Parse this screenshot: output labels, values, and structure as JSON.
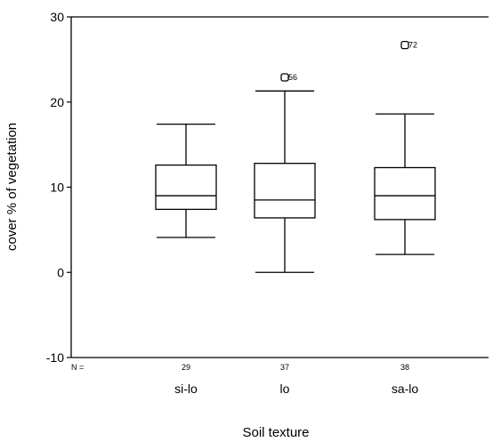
{
  "chart_data": {
    "type": "box",
    "xlabel": "Soil texture",
    "ylabel": "cover % of vegetation",
    "ylim": [
      -10,
      30
    ],
    "yticks": [
      -10,
      0,
      10,
      20,
      30
    ],
    "n_label": "N =",
    "grid": false,
    "categories": [
      "si-lo",
      "lo",
      "sa-lo"
    ],
    "n": [
      "29",
      "37",
      "38"
    ],
    "boxes": [
      {
        "min": 4.1,
        "q1": 7.4,
        "median": 9.0,
        "q3": 12.6,
        "max": 17.4,
        "outliers": []
      },
      {
        "min": 0.0,
        "q1": 6.4,
        "median": 8.5,
        "q3": 12.8,
        "max": 21.3,
        "outliers": [
          {
            "value": 22.9,
            "label": "56"
          }
        ]
      },
      {
        "min": 2.1,
        "q1": 6.2,
        "median": 9.0,
        "q3": 12.3,
        "max": 18.6,
        "outliers": [
          {
            "value": 26.7,
            "label": "72"
          }
        ]
      }
    ]
  }
}
